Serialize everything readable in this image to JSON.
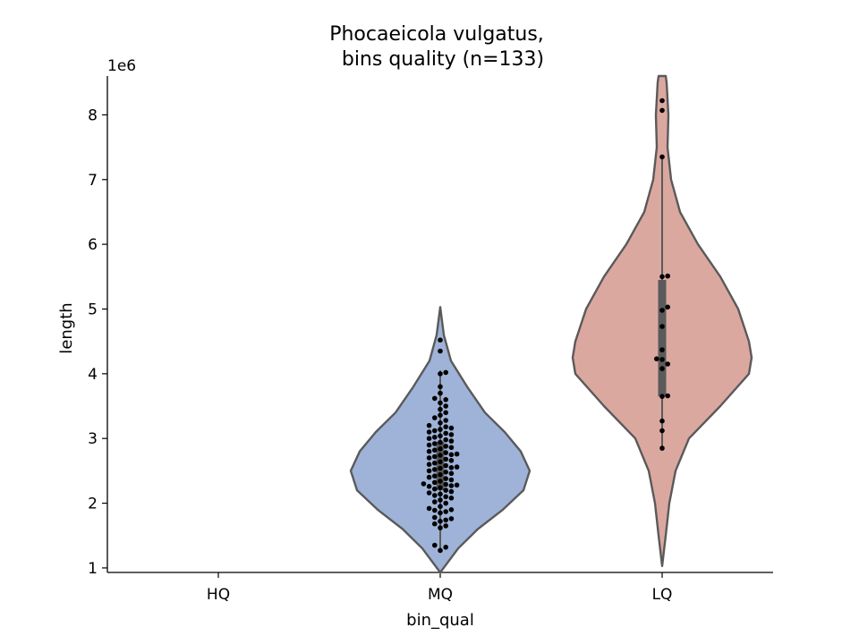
{
  "chart_data": {
    "type": "violin",
    "title_line1": "Phocaeicola vulgatus,",
    "title_line2": "bins quality (n=133)",
    "xlabel": "bin_qual",
    "ylabel": "length",
    "y_offset_label": "1e6",
    "y_scale": 1000000,
    "ylim": [
      0.93,
      8.6
    ],
    "yticks": [
      1,
      2,
      3,
      4,
      5,
      6,
      7,
      8
    ],
    "categories": [
      "HQ",
      "MQ",
      "LQ"
    ],
    "groups": [
      {
        "name": "HQ",
        "color": "",
        "points": []
      },
      {
        "name": "MQ",
        "color": "#9fb3d8",
        "box": {
          "q1": 2.2,
          "median": 2.6,
          "q3": 2.95,
          "whisker_low": 1.3,
          "whisker_high": 4.05
        },
        "density": [
          [
            0.93,
            0.0
          ],
          [
            1.3,
            0.2
          ],
          [
            1.6,
            0.42
          ],
          [
            1.9,
            0.7
          ],
          [
            2.2,
            0.93
          ],
          [
            2.5,
            1.0
          ],
          [
            2.8,
            0.9
          ],
          [
            3.1,
            0.72
          ],
          [
            3.4,
            0.5
          ],
          [
            3.8,
            0.3
          ],
          [
            4.2,
            0.12
          ],
          [
            4.6,
            0.04
          ],
          [
            5.03,
            0.0
          ]
        ],
        "points": [
          1.27,
          1.32,
          1.35,
          1.62,
          1.65,
          1.68,
          1.72,
          1.74,
          1.76,
          1.78,
          1.85,
          1.87,
          1.89,
          1.9,
          1.92,
          1.95,
          2.0,
          2.02,
          2.05,
          2.08,
          2.1,
          2.12,
          2.14,
          2.16,
          2.18,
          2.2,
          2.22,
          2.24,
          2.26,
          2.27,
          2.28,
          2.29,
          2.3,
          2.32,
          2.34,
          2.36,
          2.38,
          2.4,
          2.42,
          2.44,
          2.46,
          2.48,
          2.5,
          2.52,
          2.54,
          2.55,
          2.56,
          2.58,
          2.6,
          2.62,
          2.64,
          2.66,
          2.68,
          2.7,
          2.72,
          2.74,
          2.75,
          2.76,
          2.78,
          2.8,
          2.82,
          2.84,
          2.86,
          2.88,
          2.9,
          2.92,
          2.94,
          2.96,
          2.98,
          3.0,
          3.02,
          3.04,
          3.06,
          3.08,
          3.1,
          3.12,
          3.14,
          3.16,
          3.18,
          3.2,
          3.24,
          3.28,
          3.32,
          3.36,
          3.4,
          3.45,
          3.5,
          3.55,
          3.6,
          3.62,
          3.7,
          3.8,
          4.0,
          4.02,
          4.35,
          4.52
        ]
      },
      {
        "name": "LQ",
        "color": "#dba8a0",
        "box": {
          "q1": 3.65,
          "median": 4.5,
          "q3": 5.45,
          "whisker_low": 2.85,
          "whisker_high": 7.35
        },
        "density": [
          [
            1.03,
            0.0
          ],
          [
            1.5,
            0.04
          ],
          [
            2.0,
            0.08
          ],
          [
            2.5,
            0.15
          ],
          [
            3.0,
            0.3
          ],
          [
            3.5,
            0.65
          ],
          [
            4.0,
            0.97
          ],
          [
            4.25,
            1.0
          ],
          [
            4.5,
            0.97
          ],
          [
            5.0,
            0.85
          ],
          [
            5.5,
            0.65
          ],
          [
            6.0,
            0.4
          ],
          [
            6.5,
            0.2
          ],
          [
            7.0,
            0.1
          ],
          [
            7.5,
            0.06
          ],
          [
            8.0,
            0.07
          ],
          [
            8.5,
            0.05
          ],
          [
            8.6,
            0.04
          ]
        ],
        "points": [
          2.85,
          3.12,
          3.27,
          3.65,
          3.66,
          4.08,
          4.15,
          4.22,
          4.23,
          4.37,
          4.73,
          4.98,
          5.03,
          5.5,
          5.51,
          7.35,
          8.07,
          8.22
        ]
      }
    ]
  }
}
